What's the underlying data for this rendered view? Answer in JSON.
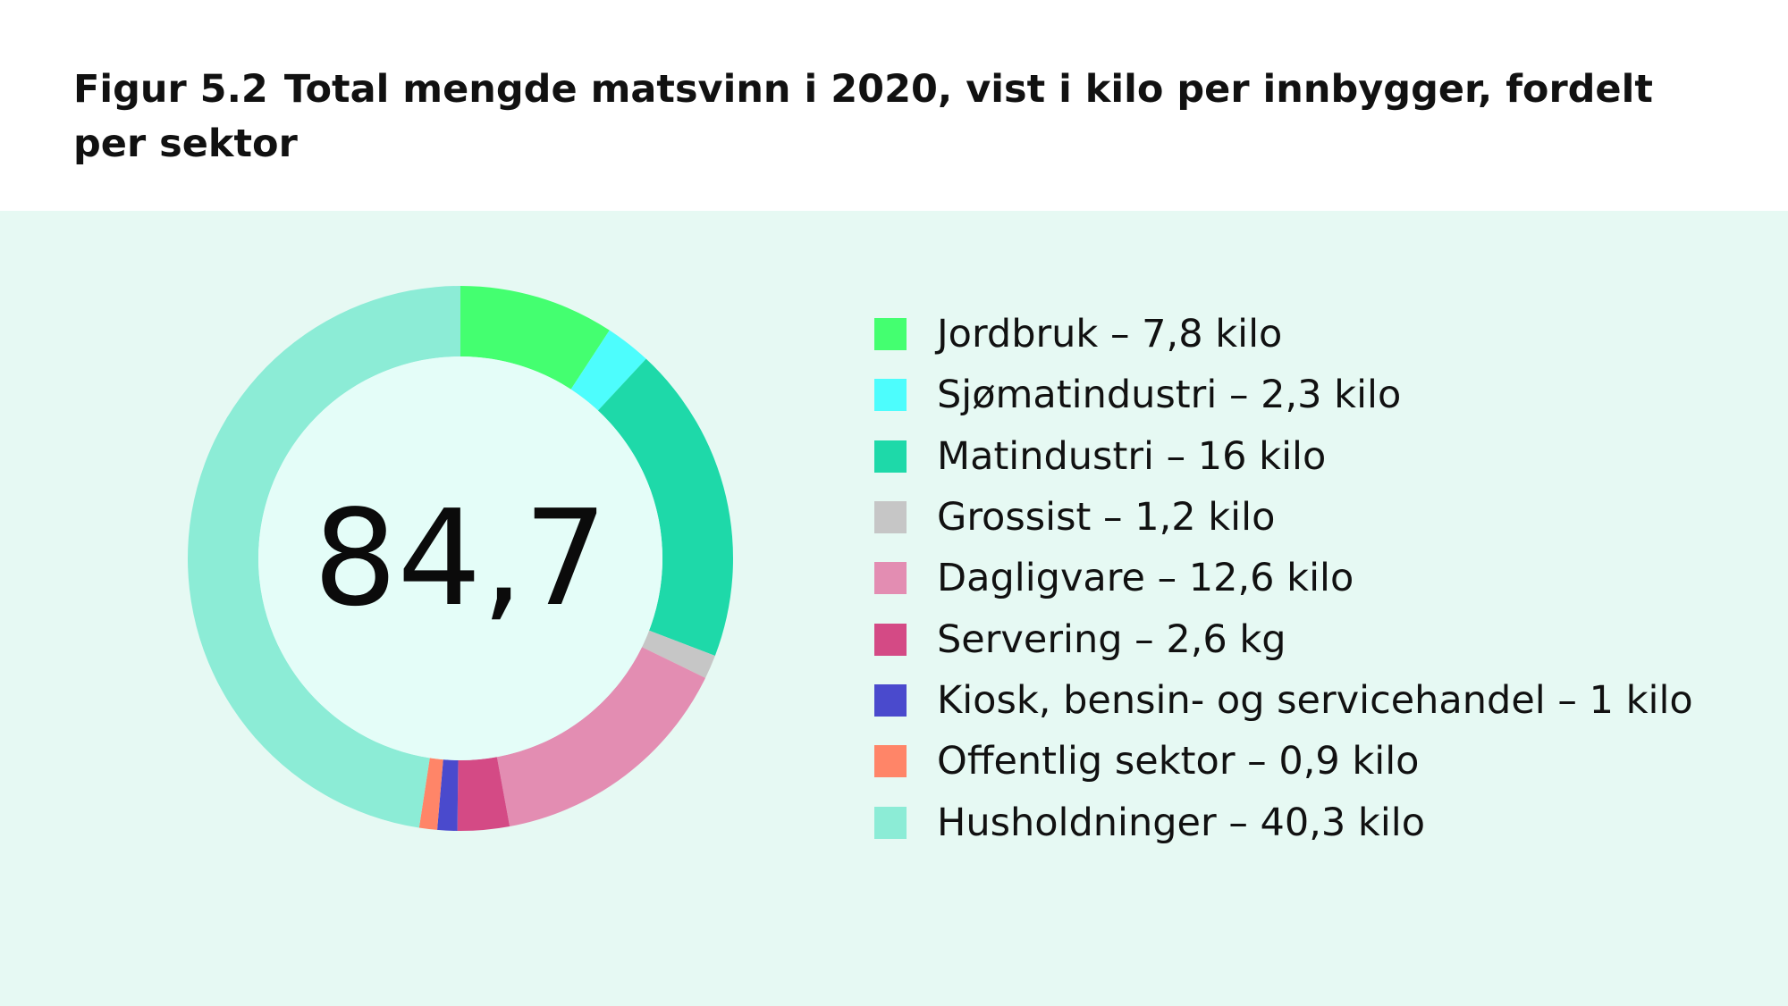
{
  "figure": {
    "label": "Figur  5.2",
    "title": "Total mengde matsvinn i 2020, vist i kilo per innbygger, fordelt per sektor"
  },
  "chart_data": {
    "type": "pie",
    "style": "donut",
    "title": "Total mengde matsvinn i 2020, vist i kilo per innbygger, fordelt per sektor",
    "center_label": "84,7",
    "total": 84.7,
    "unit": "kilo per innbygger",
    "legend_position": "right",
    "slices": [
      {
        "name": "Jordbruk",
        "value": 7.8,
        "label": "Jordbruk – 7,8 kilo",
        "color": "#44ff70"
      },
      {
        "name": "Sjømatindustri",
        "value": 2.3,
        "label": "Sjømatindustri – 2,3 kilo",
        "color": "#4dfdfd"
      },
      {
        "name": "Matindustri",
        "value": 16,
        "label": "Matindustri – 16 kilo",
        "color": "#1ed9a9"
      },
      {
        "name": "Grossist",
        "value": 1.2,
        "label": "Grossist – 1,2 kilo",
        "color": "#c6c6c6"
      },
      {
        "name": "Dagligvare",
        "value": 12.6,
        "label": "Dagligvare – 12,6 kilo",
        "color": "#e38db2"
      },
      {
        "name": "Servering",
        "value": 2.6,
        "label": "Servering – 2,6 kg",
        "color": "#d44a85"
      },
      {
        "name": "Kiosk, bensin- og servicehandel",
        "value": 1,
        "label": "Kiosk, bensin- og servicehandel – 1 kilo",
        "color": "#4a4acd"
      },
      {
        "name": "Offentlig sektor",
        "value": 0.9,
        "label": "Offentlig sektor – 0,9 kilo",
        "color": "#ff8568"
      },
      {
        "name": "Husholdninger",
        "value": 40.3,
        "label": "Husholdninger – 40,3 kilo",
        "color": "#8cecd6"
      }
    ]
  },
  "colors": {
    "panel_background": "#e6f9f3",
    "donut_center": "#e4fdf8",
    "text": "#111111"
  }
}
